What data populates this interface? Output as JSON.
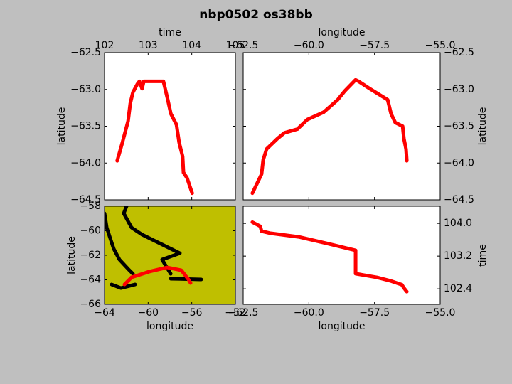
{
  "title": "nbp0502 os38bb",
  "chart_data": [
    {
      "type": "line",
      "xlabel": "time",
      "ylabel": "latitude",
      "x_axis_position": "top",
      "y_axis_position": "left",
      "background": "#ffffff",
      "xlim": [
        102,
        105
      ],
      "ylim": [
        -64.5,
        -62.5
      ],
      "xticks": [
        102,
        103,
        104,
        105
      ],
      "yticks": [
        {
          "value": -64.5,
          "label": "−64.5"
        },
        {
          "value": -64,
          "label": "−64.0"
        },
        {
          "value": -63.5,
          "label": "−63.5"
        },
        {
          "value": -63,
          "label": "−63.0"
        },
        {
          "value": -62.5,
          "label": "−62.5"
        }
      ],
      "series": [
        {
          "color": "#ff0000",
          "x": [
            102.29,
            102.41,
            102.54,
            102.59,
            102.65,
            102.75,
            102.8,
            102.86,
            102.9,
            103.35,
            103.45,
            103.52,
            103.65,
            103.71,
            103.79,
            103.81,
            103.89,
            104.01
          ],
          "values": [
            -63.97,
            -63.72,
            -63.43,
            -63.19,
            -63.04,
            -62.93,
            -62.89,
            -62.99,
            -62.89,
            -62.89,
            -63.14,
            -63.33,
            -63.48,
            -63.72,
            -63.91,
            -64.13,
            -64.2,
            -64.41
          ]
        }
      ]
    },
    {
      "type": "line",
      "xlabel": "longitude",
      "ylabel": "latitude",
      "x_axis_position": "top",
      "y_axis_position": "right",
      "background": "#ffffff",
      "xlim": [
        -62.5,
        -55
      ],
      "ylim": [
        -64.5,
        -62.5
      ],
      "xticks": [
        {
          "value": -62.5,
          "label": "−62.5"
        },
        {
          "value": -60,
          "label": "−60.0"
        },
        {
          "value": -57.5,
          "label": "−57.5"
        },
        {
          "value": -55,
          "label": "−55.0"
        }
      ],
      "yticks": [
        {
          "value": -64.5,
          "label": "−64.5"
        },
        {
          "value": -64,
          "label": "−64.0"
        },
        {
          "value": -63.5,
          "label": "−63.5"
        },
        {
          "value": -63,
          "label": "−63.0"
        },
        {
          "value": -62.5,
          "label": "−62.5"
        }
      ],
      "series": [
        {
          "color": "#ff0000",
          "x": [
            -62.15,
            -61.8,
            -61.74,
            -61.61,
            -61.2,
            -60.93,
            -60.44,
            -60.06,
            -59.44,
            -58.9,
            -58.63,
            -58.22,
            -58.11,
            -57.68,
            -57.0,
            -56.87,
            -56.71,
            -56.43,
            -56.38,
            -56.3,
            -56.27
          ],
          "values": [
            -64.41,
            -64.15,
            -63.96,
            -63.81,
            -63.67,
            -63.59,
            -63.54,
            -63.41,
            -63.31,
            -63.14,
            -63.02,
            -62.87,
            -62.89,
            -62.99,
            -63.14,
            -63.33,
            -63.45,
            -63.5,
            -63.67,
            -63.81,
            -63.97
          ]
        }
      ]
    },
    {
      "type": "line",
      "xlabel": "longitude",
      "ylabel": "latitude",
      "x_axis_position": "bottom",
      "y_axis_position": "left",
      "background": "#bfbf00",
      "xlim": [
        -64,
        -52
      ],
      "ylim": [
        -66,
        -58
      ],
      "xticks": [
        {
          "value": -64,
          "label": "−64"
        },
        {
          "value": -60,
          "label": "−60"
        },
        {
          "value": -56,
          "label": "−56"
        },
        {
          "value": -52,
          "label": "−52"
        }
      ],
      "yticks": [
        {
          "value": -66,
          "label": "−66"
        },
        {
          "value": -64,
          "label": "−64"
        },
        {
          "value": -62,
          "label": "−62"
        },
        {
          "value": -60,
          "label": "−60"
        },
        {
          "value": -58,
          "label": "−58"
        }
      ],
      "series": [
        {
          "color": "#000000",
          "x": [
            -61.98,
            -62.24,
            -61.52,
            -60.54,
            -57.09,
            -58.72,
            -57.93,
            null,
            -64.0,
            -63.8,
            -63.48,
            -63.15,
            -62.63,
            -61.85,
            -61.39,
            null,
            -63.35,
            -62.5,
            -61.2,
            null,
            -57.93,
            -55.13
          ],
          "values": [
            -58.0,
            -58.58,
            -59.74,
            -60.32,
            -61.83,
            -62.35,
            -63.51,
            null,
            -58.58,
            -59.74,
            -60.61,
            -61.48,
            -62.35,
            -63.1,
            -63.51,
            null,
            -64.38,
            -64.67,
            -64.38,
            null,
            -63.91,
            -63.97
          ]
        },
        {
          "color": "#ff0000",
          "x": [
            -62.17,
            -61.52,
            -59.89,
            -58.26,
            -56.96,
            -56.3,
            -56.11
          ],
          "values": [
            -64.38,
            -63.8,
            -63.33,
            -62.99,
            -63.22,
            -63.97,
            -64.26
          ]
        }
      ]
    },
    {
      "type": "line",
      "xlabel": "longitude",
      "ylabel": "time",
      "x_axis_position": "bottom",
      "y_axis_position": "right",
      "background": "#ffffff",
      "xlim": [
        -62.5,
        -55
      ],
      "ylim": [
        102.02,
        104.42
      ],
      "xticks": [
        {
          "value": -62.5,
          "label": "−62.5"
        },
        {
          "value": -60,
          "label": "−60.0"
        },
        {
          "value": -57.5,
          "label": "−57.5"
        },
        {
          "value": -55,
          "label": "−55.0"
        }
      ],
      "yticks": [
        102.4,
        103.2,
        {
          "value": 104,
          "label": "104.0"
        }
      ],
      "series": [
        {
          "color": "#ff0000",
          "x": [
            -62.15,
            -61.85,
            -61.8,
            -61.47,
            -60.39,
            -59.31,
            -58.22,
            -58.22,
            -57.41,
            -56.87,
            -56.46,
            -56.38,
            -56.27
          ],
          "values": [
            104.03,
            103.93,
            103.81,
            103.76,
            103.67,
            103.51,
            103.34,
            102.77,
            102.68,
            102.59,
            102.5,
            102.42,
            102.33
          ]
        }
      ]
    }
  ]
}
